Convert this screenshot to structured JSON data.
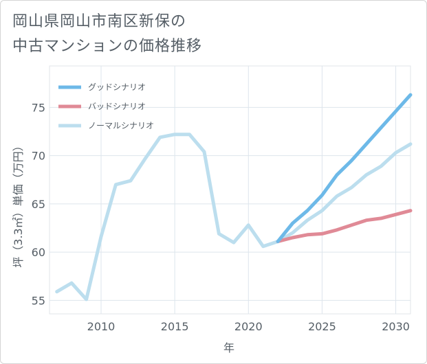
{
  "title_line1": "岡山県岡山市南区新保の",
  "title_line2": "中古マンションの価格推移",
  "chart_data": {
    "type": "line",
    "title": "岡山県岡山市南区新保の中古マンションの価格推移",
    "xlabel": "年",
    "ylabel": "坪（3.3㎡）単価（万円）",
    "xlim": [
      2006.5,
      2031
    ],
    "ylim": [
      53.6,
      79.3
    ],
    "xticks": [
      2010,
      2015,
      2020,
      2025,
      2030
    ],
    "yticks": [
      55,
      60,
      65,
      70,
      75
    ],
    "grid": true,
    "legend_position": "top-left",
    "series": [
      {
        "name": "グッドシナリオ",
        "color": "#6db9e8",
        "x": [
          2022,
          2023,
          2024,
          2025,
          2026,
          2027,
          2028,
          2029,
          2030,
          2031
        ],
        "values": [
          61.1,
          63.0,
          64.3,
          65.9,
          68.0,
          69.5,
          71.2,
          72.9,
          74.6,
          76.3
        ]
      },
      {
        "name": "バッドシナリオ",
        "color": "#e08a96",
        "x": [
          2022,
          2023,
          2024,
          2025,
          2026,
          2027,
          2028,
          2029,
          2030,
          2031
        ],
        "values": [
          61.1,
          61.5,
          61.8,
          61.9,
          62.3,
          62.8,
          63.3,
          63.5,
          63.9,
          64.3
        ]
      },
      {
        "name": "ノーマルシナリオ",
        "color": "#bcdeee",
        "x": [
          2007,
          2008,
          2009,
          2010,
          2011,
          2012,
          2013,
          2014,
          2015,
          2016,
          2017,
          2018,
          2019,
          2020,
          2021,
          2022,
          2023,
          2024,
          2025,
          2026,
          2027,
          2028,
          2029,
          2030,
          2031
        ],
        "values": [
          55.9,
          56.8,
          55.1,
          61.6,
          67.0,
          67.4,
          69.7,
          71.9,
          72.2,
          72.2,
          70.4,
          61.9,
          61.0,
          62.8,
          60.6,
          61.1,
          62.0,
          63.3,
          64.3,
          65.8,
          66.7,
          68.0,
          68.9,
          70.3,
          71.2
        ]
      }
    ]
  }
}
